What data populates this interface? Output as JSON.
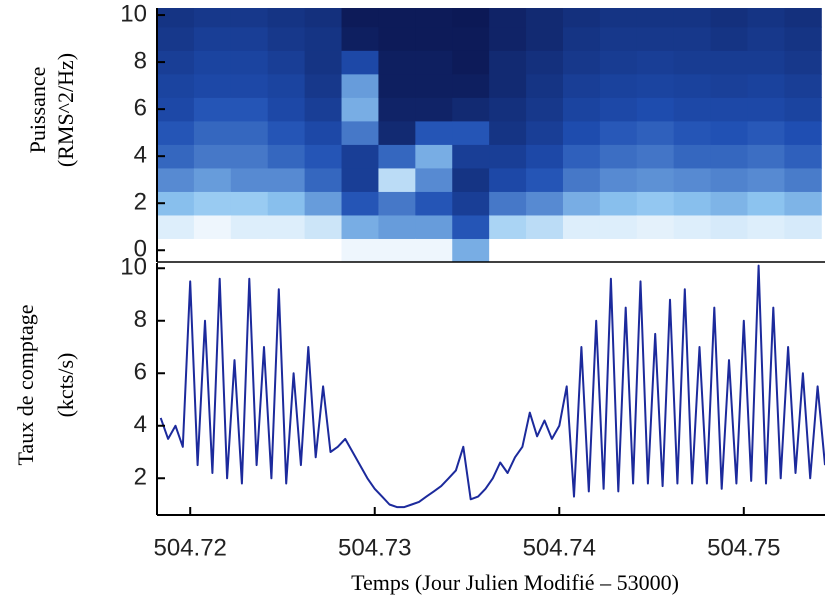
{
  "chart_data": [
    {
      "type": "heatmap",
      "ylabel": [
        "Puissance",
        "(RMS^2/Hz)"
      ],
      "xlim": [
        504.7182,
        504.7544
      ],
      "ylim": [
        -0.5,
        10.3
      ],
      "yticks": [
        0,
        2,
        4,
        6,
        8,
        10
      ],
      "colormap": [
        "#070b3d",
        "#1f4fb3",
        "#8ec5f0",
        "#ffffff"
      ],
      "xbins": [
        504.7182,
        504.7202,
        504.7222,
        504.7242,
        504.7262,
        504.7282,
        504.7302,
        504.7322,
        504.7342,
        504.7362,
        504.7382,
        504.7402,
        504.7422,
        504.7442,
        504.7462,
        504.7482,
        504.7502,
        504.7522,
        504.7542
      ],
      "ybins": [
        -0.5,
        0.5,
        1.5,
        2.5,
        3.5,
        4.5,
        5.5,
        6.5,
        7.5,
        8.5,
        9.5,
        10.5
      ],
      "z": [
        [
          1.0,
          0.9,
          0.65,
          0.5,
          0.4,
          0.35,
          0.3,
          0.28,
          0.25,
          0.22,
          0.2
        ],
        [
          1.0,
          0.95,
          0.7,
          0.55,
          0.45,
          0.4,
          0.35,
          0.3,
          0.28,
          0.25,
          0.22
        ],
        [
          1.0,
          0.9,
          0.7,
          0.5,
          0.45,
          0.4,
          0.35,
          0.3,
          0.28,
          0.25,
          0.22
        ],
        [
          1.0,
          0.9,
          0.65,
          0.5,
          0.4,
          0.35,
          0.3,
          0.28,
          0.25,
          0.22,
          0.2
        ],
        [
          1.0,
          0.85,
          0.55,
          0.4,
          0.35,
          0.3,
          0.25,
          0.22,
          0.2,
          0.2,
          0.18
        ],
        [
          0.95,
          0.6,
          0.35,
          0.25,
          0.25,
          0.45,
          0.6,
          0.55,
          0.3,
          0.1,
          0.08
        ],
        [
          0.95,
          0.55,
          0.45,
          0.8,
          0.4,
          0.15,
          0.12,
          0.1,
          0.1,
          0.08,
          0.08
        ],
        [
          0.95,
          0.55,
          0.35,
          0.5,
          0.6,
          0.35,
          0.12,
          0.1,
          0.1,
          0.08,
          0.08
        ],
        [
          0.6,
          0.35,
          0.25,
          0.2,
          0.25,
          0.35,
          0.15,
          0.1,
          0.08,
          0.08,
          0.07
        ],
        [
          1.0,
          0.75,
          0.45,
          0.3,
          0.25,
          0.2,
          0.18,
          0.15,
          0.15,
          0.12,
          0.12
        ],
        [
          1.0,
          0.8,
          0.5,
          0.35,
          0.3,
          0.25,
          0.22,
          0.2,
          0.18,
          0.15,
          0.15
        ],
        [
          1.0,
          0.9,
          0.6,
          0.45,
          0.38,
          0.32,
          0.28,
          0.25,
          0.22,
          0.2,
          0.18
        ],
        [
          1.0,
          0.9,
          0.65,
          0.5,
          0.42,
          0.36,
          0.3,
          0.27,
          0.24,
          0.22,
          0.2
        ],
        [
          1.0,
          0.92,
          0.68,
          0.52,
          0.44,
          0.38,
          0.32,
          0.28,
          0.25,
          0.22,
          0.2
        ],
        [
          1.0,
          0.9,
          0.65,
          0.5,
          0.4,
          0.35,
          0.3,
          0.27,
          0.24,
          0.22,
          0.2
        ],
        [
          1.0,
          0.88,
          0.62,
          0.48,
          0.4,
          0.34,
          0.3,
          0.26,
          0.24,
          0.2,
          0.18
        ],
        [
          1.0,
          0.9,
          0.66,
          0.5,
          0.42,
          0.36,
          0.3,
          0.27,
          0.24,
          0.22,
          0.2
        ],
        [
          1.0,
          0.88,
          0.62,
          0.46,
          0.38,
          0.33,
          0.28,
          0.25,
          0.22,
          0.2,
          0.18
        ]
      ]
    },
    {
      "type": "line",
      "xlabel": "Temps (Jour Julien Modifié – 53000)",
      "ylabel": [
        "Taux de comptage",
        "(kcts/s)"
      ],
      "xlim": [
        504.7182,
        504.7544
      ],
      "ylim": [
        0.6,
        10.2
      ],
      "xticks": [
        504.72,
        504.73,
        504.74,
        504.75
      ],
      "yticks": [
        2,
        4,
        6,
        8,
        10
      ],
      "color": "#1c2a9c",
      "x": [
        504.7184,
        504.7188,
        504.7192,
        504.7196,
        504.72,
        504.7204,
        504.7208,
        504.7212,
        504.7216,
        504.722,
        504.7224,
        504.7228,
        504.7232,
        504.7236,
        504.724,
        504.7244,
        504.7248,
        504.7252,
        504.7256,
        504.726,
        504.7264,
        504.7268,
        504.7272,
        504.7276,
        504.728,
        504.7284,
        504.7288,
        504.7292,
        504.7296,
        504.73,
        504.7304,
        504.7308,
        504.7312,
        504.7316,
        504.732,
        504.7324,
        504.7328,
        504.7332,
        504.7336,
        504.734,
        504.7344,
        504.7348,
        504.7352,
        504.7356,
        504.736,
        504.7364,
        504.7368,
        504.7372,
        504.7376,
        504.738,
        504.7384,
        504.7388,
        504.7392,
        504.7396,
        504.74,
        504.7404,
        504.7408,
        504.7412,
        504.7416,
        504.742,
        504.7424,
        504.7428,
        504.7432,
        504.7436,
        504.744,
        504.7444,
        504.7448,
        504.7452,
        504.7456,
        504.746,
        504.7464,
        504.7468,
        504.7472,
        504.7476,
        504.748,
        504.7484,
        504.7488,
        504.7492,
        504.7496,
        504.75,
        504.7504,
        504.7508,
        504.7512,
        504.7516,
        504.752,
        504.7524,
        504.7528,
        504.7532,
        504.7536,
        504.754,
        504.7544
      ],
      "values": [
        4.3,
        3.5,
        4.0,
        3.2,
        9.5,
        2.5,
        8.0,
        2.2,
        9.6,
        2.0,
        6.5,
        1.8,
        9.6,
        2.5,
        7.0,
        2.0,
        9.2,
        1.8,
        6.0,
        2.5,
        7.0,
        2.8,
        5.5,
        3.0,
        3.2,
        3.5,
        3.0,
        2.5,
        2.0,
        1.6,
        1.3,
        1.0,
        0.9,
        0.9,
        1.0,
        1.1,
        1.3,
        1.5,
        1.7,
        2.0,
        2.3,
        3.2,
        1.2,
        1.3,
        1.6,
        2.0,
        2.6,
        2.2,
        2.8,
        3.2,
        4.5,
        3.6,
        4.2,
        3.5,
        4.0,
        5.5,
        1.3,
        7.0,
        1.5,
        8.0,
        1.6,
        9.6,
        1.5,
        8.5,
        1.8,
        9.5,
        1.8,
        7.5,
        1.7,
        8.8,
        1.8,
        9.2,
        1.8,
        7.0,
        1.8,
        8.5,
        1.6,
        6.5,
        1.8,
        8.0,
        1.9,
        10.1,
        1.8,
        8.5,
        2.0,
        7.0,
        2.2,
        6.0,
        2.0,
        5.5,
        2.5
      ]
    }
  ]
}
